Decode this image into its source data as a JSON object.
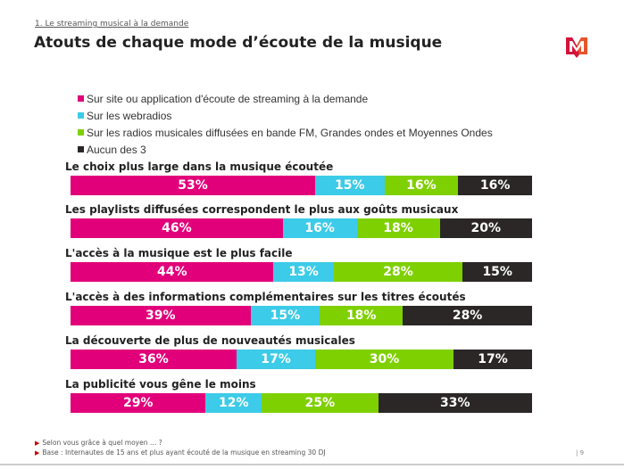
{
  "header": {
    "section": "1. Le streaming musical à la demande",
    "title": "Atouts de chaque mode d’écoute de la musique"
  },
  "logo_text": "M",
  "chart_data": {
    "type": "bar",
    "orientation": "horizontal-stacked-100",
    "legend_position": "top",
    "series": [
      {
        "name": "Sur site ou application d'écoute de streaming à la demande",
        "color": "#e2007a",
        "values": [
          53,
          46,
          44,
          39,
          36,
          29
        ]
      },
      {
        "name": "Sur les webradios",
        "color": "#3ccbe8",
        "values": [
          15,
          16,
          13,
          15,
          17,
          12
        ]
      },
      {
        "name": "Sur les radios musicales diffusées en bande FM, Grandes ondes et Moyennes Ondes",
        "color": "#7fd000",
        "values": [
          16,
          18,
          28,
          18,
          30,
          25
        ]
      },
      {
        "name": "Aucun des 3",
        "color": "#2b2727",
        "values": [
          16,
          20,
          15,
          28,
          17,
          33
        ]
      }
    ],
    "categories": [
      "Le choix plus large dans la musique écoutée",
      "Les playlists diffusées correspondent le plus aux goûts musicaux",
      "L'accès à la musique est le plus facile",
      "L'accès à des informations complémentaires sur les titres écoutés",
      "La découverte de plus de nouveautés musicales",
      "La publicité vous gêne le moins"
    ],
    "unit": "%"
  },
  "footer": {
    "question": "Selon vous grâce à quel moyen … ?",
    "base": "Base : Internautes de 15 ans et plus ayant écouté de la musique en streaming 30 DJ",
    "page": "9"
  }
}
